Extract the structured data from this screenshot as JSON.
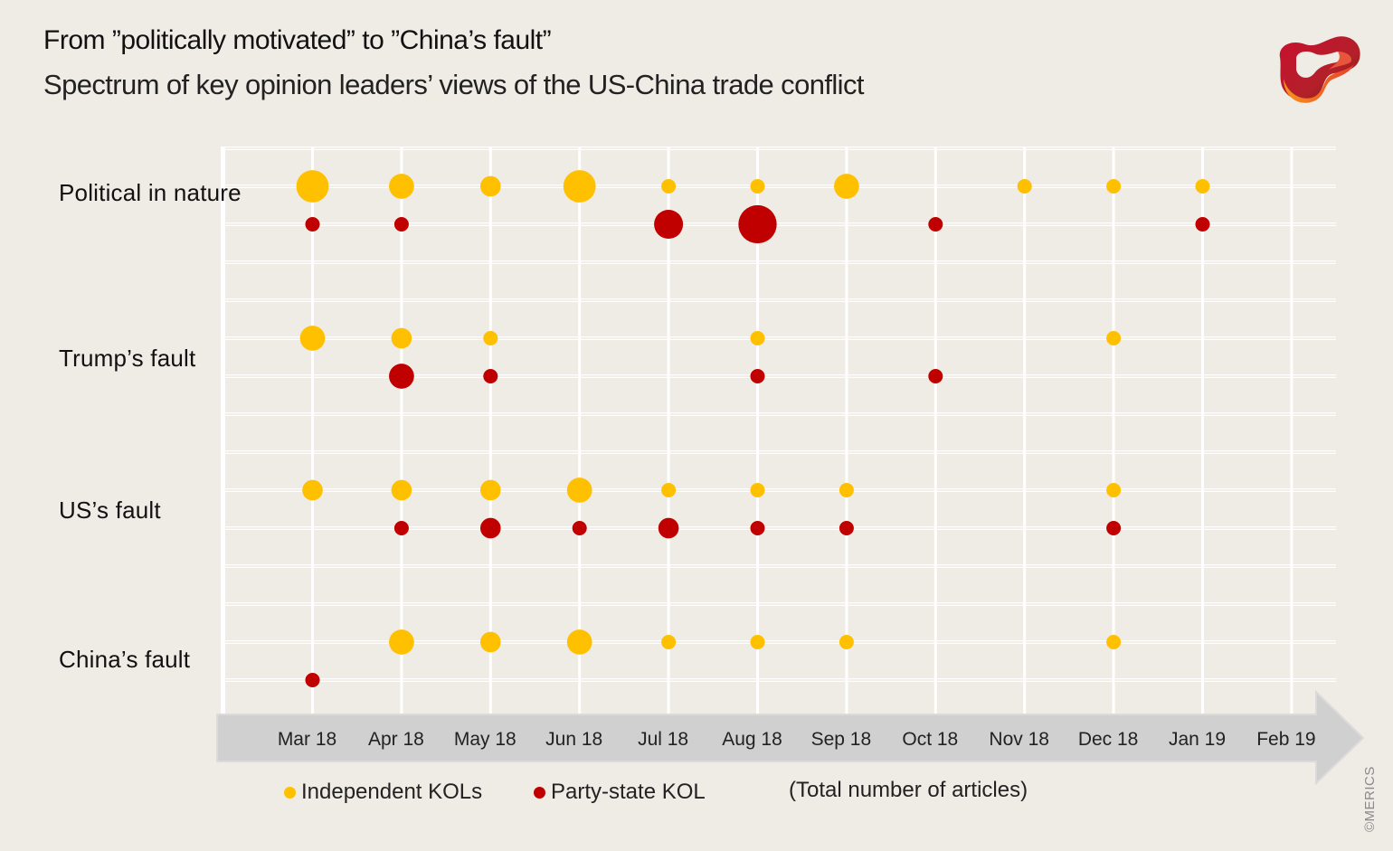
{
  "header": {
    "title": "From ”politically motivated” to ”China’s fault”",
    "subtitle": "Spectrum of key opinion leaders’ views of the US-China trade conflict"
  },
  "logo": {
    "name": "merics-logo"
  },
  "colors": {
    "background": "#efebe5",
    "independent": "#ffc000",
    "party_state": "#c00000",
    "grid": "#ffffff",
    "axis_band": "#d1d0d1"
  },
  "chart_data": {
    "type": "scatter",
    "subtype": "bubble",
    "title": "From ”politically motivated” to ”China’s fault”",
    "subtitle": "Spectrum of key opinion leaders’ views of the US-China trade conflict",
    "xlabel": "",
    "ylabel": "",
    "size_label": "(Total number of  articles)",
    "x": [
      "Mar 18",
      "Apr 18",
      "May 18",
      "Jun 18",
      "Jul 18",
      "Aug 18",
      "Sep 18",
      "Oct 18",
      "Nov 18",
      "Dec 18",
      "Jan 19",
      "Feb 19"
    ],
    "categories": [
      "Political in nature",
      "Trump’s fault",
      "US’s fault",
      "China’s fault"
    ],
    "grid": true,
    "legend_position": "bottom-left",
    "series": [
      {
        "name": "Independent KOLs",
        "color": "#ffc000",
        "values": {
          "Political in nature": [
            5,
            3,
            2,
            5,
            1,
            1,
            3,
            0,
            1,
            1,
            1,
            0
          ],
          "Trump’s fault": [
            3,
            2,
            1,
            0,
            0,
            1,
            0,
            0,
            0,
            1,
            0,
            0
          ],
          "US’s fault": [
            2,
            2,
            2,
            3,
            1,
            1,
            1,
            0,
            0,
            1,
            0,
            0
          ],
          "China’s fault": [
            0,
            3,
            2,
            3,
            1,
            1,
            1,
            0,
            0,
            1,
            0,
            0
          ]
        }
      },
      {
        "name": "Party-state KOL",
        "color": "#c00000",
        "values": {
          "Political in nature": [
            1,
            1,
            0,
            0,
            4,
            7,
            0,
            1,
            0,
            0,
            1,
            0
          ],
          "Trump’s fault": [
            0,
            3,
            1,
            0,
            0,
            1,
            0,
            1,
            0,
            0,
            0,
            0
          ],
          "US’s fault": [
            0,
            1,
            2,
            1,
            2,
            1,
            1,
            0,
            0,
            1,
            0,
            0
          ],
          "China’s fault": [
            1,
            0,
            0,
            0,
            0,
            0,
            0,
            0,
            0,
            0,
            0,
            0
          ]
        }
      }
    ]
  },
  "legend": {
    "items": [
      {
        "label": "Independent KOLs",
        "color": "#ffc000"
      },
      {
        "label": "Party-state KOL",
        "color": "#c00000"
      }
    ],
    "note": "(Total number of  articles)"
  },
  "copyright": "©MERICS"
}
